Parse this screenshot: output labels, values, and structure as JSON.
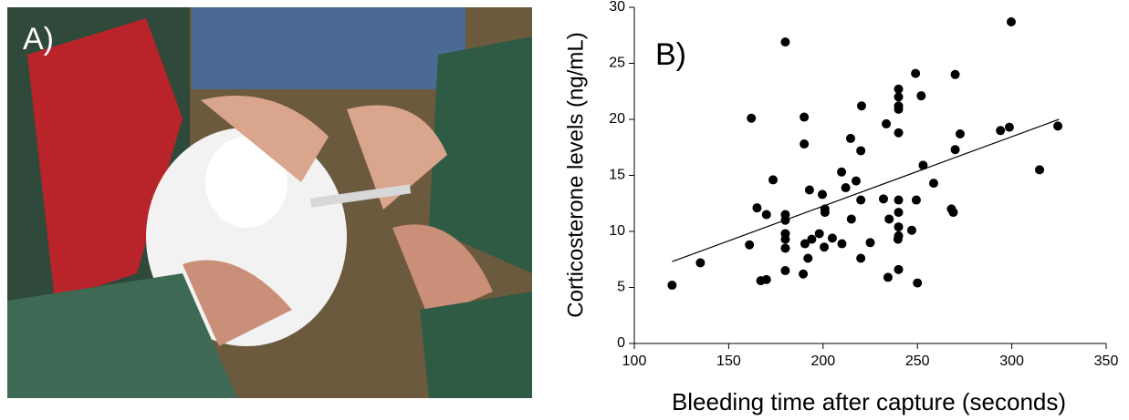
{
  "panel_a": {
    "label": "A)"
  },
  "chart_data": {
    "type": "scatter",
    "panel_label": "B)",
    "x_label": "Bleeding time after capture (seconds)",
    "y_label": "Corticosterone levels (ng/mL)",
    "color": "#000000",
    "x": [
      120,
      135,
      161,
      162,
      165,
      167,
      170,
      170,
      173.5,
      180,
      180,
      180,
      180,
      180,
      180,
      180,
      190,
      190,
      189.5,
      190.4,
      192.8,
      192,
      194,
      198,
      199.6,
      200.6,
      201,
      201,
      204.9,
      209.8,
      210,
      212,
      214.6,
      215,
      217.5,
      220.4,
      220,
      220,
      220,
      225,
      232,
      233.5,
      234.4,
      235,
      239.7,
      240,
      240,
      240,
      240,
      240,
      240,
      240,
      240,
      240,
      240,
      247,
      249,
      249.4,
      250,
      252,
      253,
      258.6,
      268,
      269,
      270,
      270,
      272.6,
      294,
      298.7,
      299.7,
      314.7,
      324.4
    ],
    "values": [
      5.2,
      7.2,
      8.8,
      20.1,
      12.1,
      5.6,
      5.7,
      11.5,
      14.6,
      26.9,
      11.5,
      11.0,
      9.8,
      9.3,
      8.5,
      6.5,
      20.2,
      17.8,
      6.2,
      8.9,
      13.7,
      7.6,
      9.3,
      9.8,
      13.3,
      8.6,
      11.7,
      12.0,
      9.4,
      15.3,
      8.9,
      13.9,
      18.3,
      11.1,
      14.5,
      21.2,
      17.2,
      12.8,
      7.6,
      9.0,
      12.9,
      19.6,
      5.9,
      11.1,
      9.3,
      10.4,
      9.6,
      11.7,
      12.8,
      6.6,
      18.8,
      22.7,
      22.0,
      21.2,
      20.9,
      10.1,
      24.1,
      12.8,
      5.4,
      22.1,
      15.9,
      14.3,
      12.0,
      11.7,
      17.3,
      24.0,
      18.7,
      19.0,
      19.3,
      28.7,
      15.5,
      19.4
    ],
    "trendline": {
      "x": [
        120,
        325
      ],
      "values": [
        7.3,
        20.0
      ]
    },
    "xlim": [
      100,
      350
    ],
    "xticks": [
      100,
      150,
      200,
      250,
      300,
      350
    ],
    "ylim": [
      0,
      30
    ],
    "yticks": [
      0,
      5,
      10,
      15,
      20,
      25,
      30
    ]
  }
}
